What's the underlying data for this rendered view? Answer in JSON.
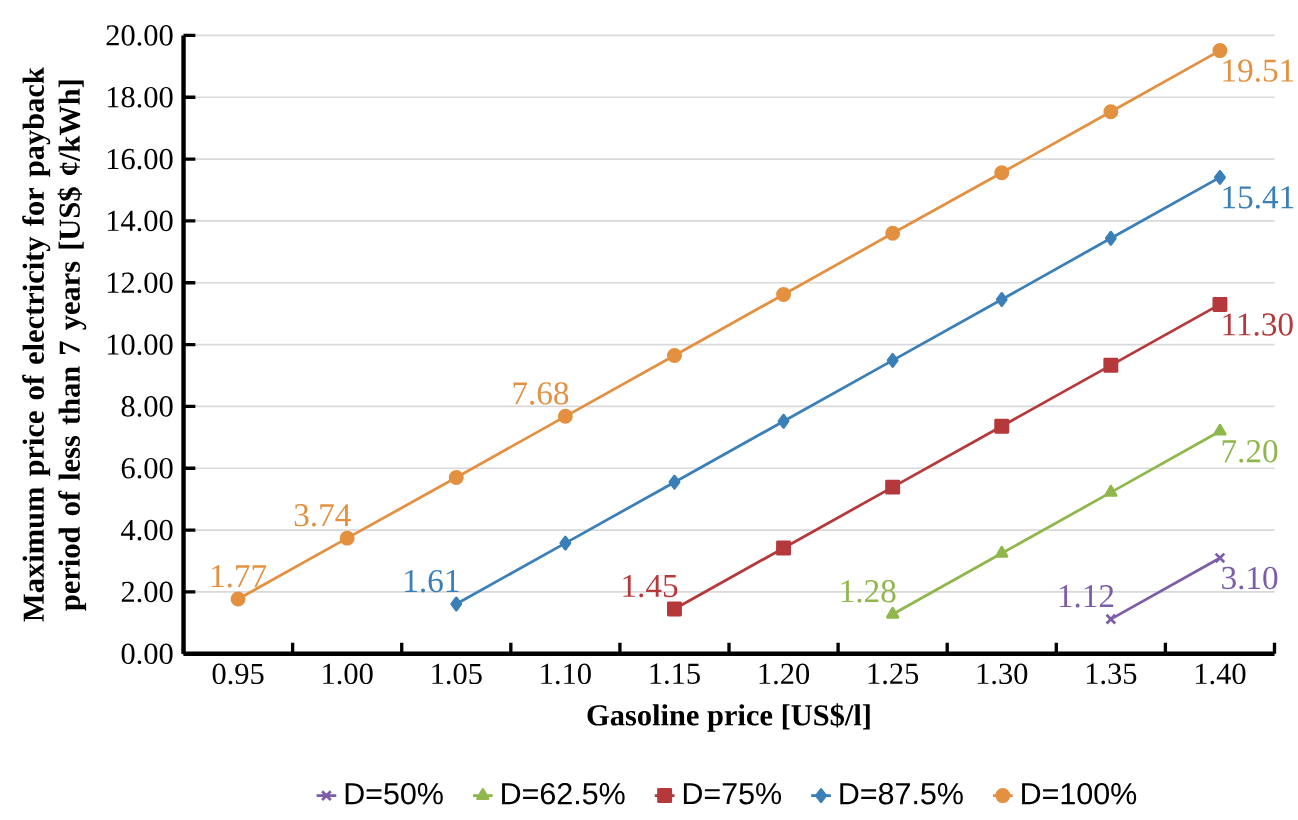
{
  "chart_data": {
    "type": "line",
    "xlabel": "Gasoline price [US$/l]",
    "ylabel": "Maximum price of electricity for payback period of less than 7 years [US$ ¢/kWh]",
    "categories": [
      "0.95",
      "1.00",
      "1.05",
      "1.10",
      "1.15",
      "1.20",
      "1.25",
      "1.30",
      "1.35",
      "1.40"
    ],
    "ylim": [
      0,
      20
    ],
    "yticks": [
      {
        "value": 0,
        "label": "0.00"
      },
      {
        "value": 2,
        "label": "2.00"
      },
      {
        "value": 4,
        "label": "4.00"
      },
      {
        "value": 6,
        "label": "6.00"
      },
      {
        "value": 8,
        "label": "8.00"
      },
      {
        "value": 10,
        "label": "10.00"
      },
      {
        "value": 12,
        "label": "12.00"
      },
      {
        "value": 14,
        "label": "14.00"
      },
      {
        "value": 16,
        "label": "16.00"
      },
      {
        "value": 18,
        "label": "18.00"
      },
      {
        "value": 20,
        "label": "20.00"
      }
    ],
    "grid": "y",
    "legend": "bottom",
    "line_style": "solid",
    "series": [
      {
        "name": "D=50%",
        "color": "#7b5ea7",
        "marker": "cross",
        "values": [
          null,
          null,
          null,
          null,
          null,
          null,
          null,
          null,
          1.12,
          3.1
        ],
        "value_labels": [
          null,
          null,
          null,
          null,
          null,
          null,
          null,
          null,
          "1.12",
          "3.10"
        ]
      },
      {
        "name": "D=62.5%",
        "color": "#8fb74c",
        "marker": "triangle",
        "values": [
          null,
          null,
          null,
          null,
          null,
          null,
          1.28,
          3.25,
          5.22,
          7.2
        ],
        "value_labels": [
          null,
          null,
          null,
          null,
          null,
          null,
          "1.28",
          null,
          null,
          "7.20"
        ]
      },
      {
        "name": "D=75%",
        "color": "#b5393b",
        "marker": "square",
        "values": [
          null,
          null,
          null,
          null,
          1.45,
          3.42,
          5.39,
          7.36,
          9.33,
          11.3
        ],
        "value_labels": [
          null,
          null,
          null,
          null,
          "1.45",
          null,
          null,
          null,
          null,
          "11.30"
        ]
      },
      {
        "name": "D=87.5%",
        "color": "#3a7fb8",
        "marker": "diamond",
        "values": [
          null,
          null,
          1.61,
          3.58,
          5.55,
          7.52,
          9.49,
          11.46,
          13.44,
          15.41
        ],
        "value_labels": [
          null,
          null,
          "1.61",
          null,
          null,
          null,
          null,
          null,
          null,
          "15.41"
        ]
      },
      {
        "name": "D=100%",
        "color": "#e39140",
        "marker": "circle",
        "values": [
          1.77,
          3.74,
          5.7,
          7.68,
          9.65,
          11.62,
          13.6,
          15.56,
          17.53,
          19.51
        ],
        "value_labels": [
          "1.77",
          "3.74",
          null,
          "7.68",
          null,
          null,
          null,
          null,
          null,
          "19.51"
        ]
      }
    ]
  }
}
